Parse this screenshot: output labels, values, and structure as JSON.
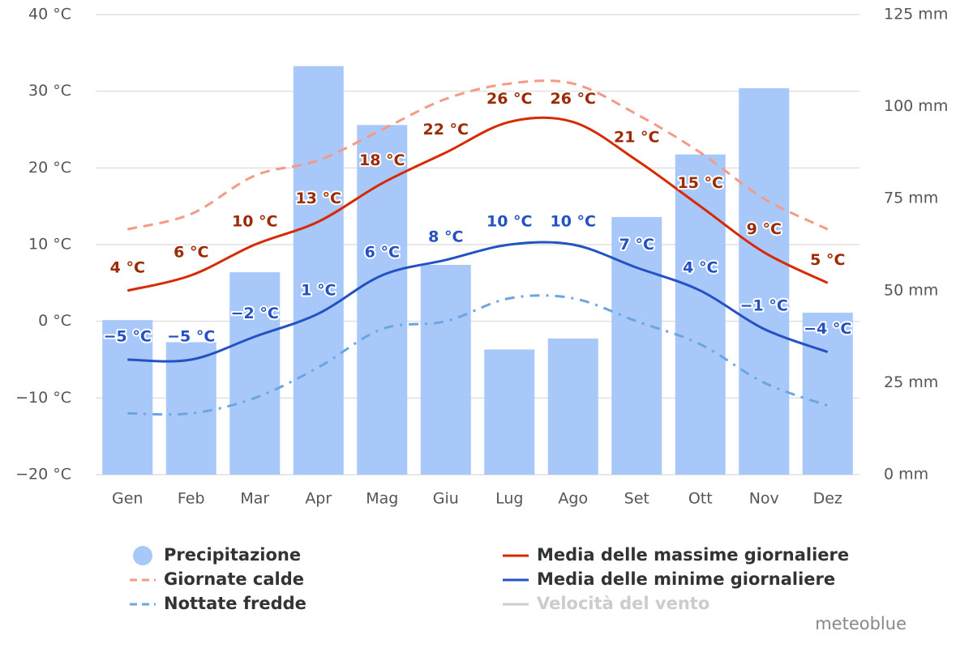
{
  "chart_data": {
    "type": "combo",
    "categories": [
      "Gen",
      "Feb",
      "Mar",
      "Apr",
      "Mag",
      "Giu",
      "Lug",
      "Ago",
      "Set",
      "Ott",
      "Nov",
      "Dez"
    ],
    "ylim": [
      -20,
      40
    ],
    "yticks": [
      {
        "value": -20,
        "label": "−20 °C"
      },
      {
        "value": -10,
        "label": "−10 °C"
      },
      {
        "value": 0,
        "label": "0 °C"
      },
      {
        "value": 10,
        "label": "10 °C"
      },
      {
        "value": 20,
        "label": "20 °C"
      },
      {
        "value": 30,
        "label": "30 °C"
      },
      {
        "value": 40,
        "label": "40 °C"
      }
    ],
    "y2lim": [
      0,
      125
    ],
    "y2ticks": [
      {
        "value": 0,
        "label": "0 mm"
      },
      {
        "value": 25,
        "label": "25 mm"
      },
      {
        "value": 50,
        "label": "50 mm"
      },
      {
        "value": 75,
        "label": "75 mm"
      },
      {
        "value": 100,
        "label": "100 mm"
      },
      {
        "value": 125,
        "label": "125 mm"
      }
    ],
    "grid": true,
    "series": [
      {
        "name": "Precipitazione",
        "kind": "bar",
        "axis": "y2",
        "color": "#a9c8fa",
        "values": [
          42,
          36,
          55,
          111,
          95,
          57,
          34,
          37,
          70,
          87,
          105,
          44
        ]
      },
      {
        "name": "Media delle massime giornaliere",
        "kind": "line",
        "color": "#d62a00",
        "label_color": "#9c2b05",
        "values": [
          4,
          6,
          10,
          13,
          18,
          22,
          26,
          26,
          21,
          15,
          9,
          5
        ],
        "value_labels": [
          "4 °C",
          "6 °C",
          "10 °C",
          "13 °C",
          "18 °C",
          "22 °C",
          "26 °C",
          "26 °C",
          "21 °C",
          "15 °C",
          "9 °C",
          "5 °C"
        ]
      },
      {
        "name": "Giornate calde",
        "kind": "line",
        "dash": "12 8",
        "color": "#f59a86",
        "values": [
          12,
          14,
          19,
          21,
          25,
          29,
          31,
          31,
          27,
          22,
          16,
          12
        ]
      },
      {
        "name": "Media delle minime giornaliere",
        "kind": "line",
        "color": "#2452c2",
        "label_color": "#2452c2",
        "values": [
          -5,
          -5,
          -2,
          1,
          6,
          8,
          10,
          10,
          7,
          4,
          -1,
          -4
        ],
        "value_labels": [
          "−5 °C",
          "−5 °C",
          "−2 °C",
          "1 °C",
          "6 °C",
          "8 °C",
          "10 °C",
          "10 °C",
          "7 °C",
          "4 °C",
          "−1 °C",
          "−4 °C"
        ]
      },
      {
        "name": "Nottate fredde",
        "kind": "line",
        "dash": "12 8 3 8",
        "color": "#6ca6e0",
        "values": [
          -12,
          -12,
          -10,
          -6,
          -1,
          0,
          3,
          3,
          0,
          -3,
          -8,
          -11
        ]
      },
      {
        "name": "Velocità del vento",
        "kind": "line",
        "visible": false,
        "color": "#cccccc"
      }
    ],
    "credit": "meteoblue"
  }
}
